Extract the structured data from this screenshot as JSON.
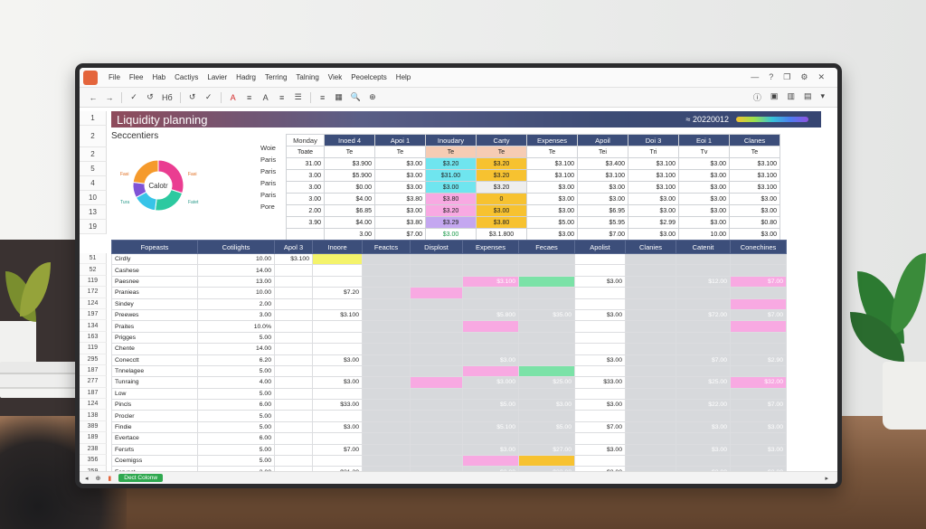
{
  "menu": [
    "File",
    "Flee",
    "Hab",
    "Cactiys",
    "Lavier",
    "Hadrg",
    "Terring",
    "Talning",
    "Viek",
    "Peoelcepts",
    "Help"
  ],
  "toolbar": [
    "←",
    "→",
    "✓",
    "↺",
    "Hб",
    "↺",
    "✓",
    "A",
    "≡",
    "A",
    "≡",
    "☰",
    "≡",
    "▦",
    "🔍",
    "⊕"
  ],
  "title": "Liquidity planning",
  "title_date": "20220012",
  "subhead": "Seccentiers",
  "donut": {
    "center_label": "Calotr",
    "segments": [
      {
        "label": "Fasi",
        "color": "#ea3d91",
        "value": 30
      },
      {
        "label": "Fatet",
        "color": "#2dc9a0",
        "value": 22
      },
      {
        "label": "Tura",
        "color": "#37c4e8",
        "value": 15
      },
      {
        "label": "Fasi",
        "color": "#7f53d6",
        "value": 10
      },
      {
        "label": "Fasi",
        "color": "#f59a2c",
        "value": 23
      }
    ]
  },
  "upper": {
    "side_labels": [
      "Woie",
      "Paris",
      "Paris",
      "Paris",
      "Paris",
      "Pore"
    ],
    "header": [
      "Monday",
      "Inoed 4",
      "Apoi 1",
      "Inoudary",
      "Carty",
      "Expenses",
      "Apoil",
      "Doi 3",
      "Eoi 1",
      "Clanes"
    ],
    "subheader": [
      "Toate",
      "Te",
      "Te",
      "Te",
      "Te",
      "Te",
      "Tei",
      "Tri",
      "Tv",
      "Te"
    ],
    "rows": [
      [
        "31.00",
        "$3.900",
        "$3.00",
        "$3.20",
        "$3.20",
        "$3.100",
        "$3.400",
        "$3.100",
        "$3.00",
        "$3.100"
      ],
      [
        "3.00",
        "$5.900",
        "$3.00",
        "$31.00",
        "$3.20",
        "$3.100",
        "$3.100",
        "$3.100",
        "$3.00",
        "$3.100"
      ],
      [
        "3.00",
        "$0.00",
        "$3.00",
        "$3.00",
        "$3.20",
        "$3.00",
        "$3.00",
        "$3.100",
        "$3.00",
        "$3.100"
      ],
      [
        "3.00",
        "$4.00",
        "$3.80",
        "$3.80",
        "0",
        "$3.00",
        "$3.00",
        "$3.00",
        "$3.00",
        "$3.00"
      ],
      [
        "2.00",
        "$6.85",
        "$3.00",
        "$3.20",
        "$3.00",
        "$3.00",
        "$6.95",
        "$3.00",
        "$3.00",
        "$3.00"
      ],
      [
        "3.90",
        "$4.00",
        "$3.80",
        "$3.29",
        "$3.80",
        "$5.00",
        "$5.95",
        "$2.99",
        "$3.00",
        "$0.80"
      ],
      [
        "",
        "3.00",
        "$7.00",
        "$3.00",
        "$3.1.800",
        "$3.00",
        "$7.00",
        "$3.00",
        "10.00",
        "$3.00"
      ]
    ]
  },
  "lower": {
    "header": [
      "Fopeasts",
      "Cotilights",
      "Apol 3",
      "Inoore",
      "Feactcs",
      "Displost",
      "Expenses",
      "Fecaes",
      "Apolist",
      "Clanies",
      "Catenit",
      "Conechines"
    ],
    "rows": [
      {
        "n": "51",
        "label": "Cirdly",
        "v": "10.00",
        "c": [
          "$3.100",
          "",
          "",
          "",
          "",
          "",
          "",
          "",
          "",
          ""
        ]
      },
      {
        "n": "52",
        "label": "Cashese",
        "v": "14.00",
        "c": [
          "",
          "",
          "",
          "",
          "",
          "",
          "",
          "",
          "",
          ""
        ]
      },
      {
        "n": "119",
        "label": "Paesnee",
        "v": "13.00",
        "c": [
          "",
          "",
          "",
          "",
          "$3.100",
          "",
          "$3.00",
          "",
          "$12.00",
          "$7.00"
        ]
      },
      {
        "n": "172",
        "label": "Pranieas",
        "v": "10.00",
        "c": [
          "",
          "$7.20",
          "",
          "",
          "",
          "",
          "",
          "",
          "",
          ""
        ]
      },
      {
        "n": "124",
        "label": "Sindey",
        "v": "2.00",
        "c": [
          "",
          "",
          "",
          "",
          "",
          "",
          "",
          "",
          "",
          ""
        ]
      },
      {
        "n": "197",
        "label": "Preewes",
        "v": "3.00",
        "c": [
          "",
          "$3.100",
          "",
          "",
          "$5.800",
          "$35.00",
          "$3.00",
          "",
          "$72.00",
          "$7.00"
        ]
      },
      {
        "n": "134",
        "label": "Praites",
        "v": "10.0%",
        "c": [
          "",
          "",
          "",
          "",
          "",
          "",
          "",
          "",
          "",
          ""
        ]
      },
      {
        "n": "163",
        "label": "Prigges",
        "v": "5.00",
        "c": [
          "",
          "",
          "",
          "",
          "",
          "",
          "",
          "",
          "",
          ""
        ]
      },
      {
        "n": "119",
        "label": "Chente",
        "v": "14.00",
        "c": [
          "",
          "",
          "",
          "",
          "",
          "",
          "",
          "",
          "",
          ""
        ]
      },
      {
        "n": "295",
        "label": "Conecctt",
        "v": "6.20",
        "c": [
          "",
          "$3.00",
          "",
          "",
          "$3.00",
          "",
          "$3.00",
          "",
          "$7.00",
          "$2.90"
        ]
      },
      {
        "n": "187",
        "label": "Tnnelagee",
        "v": "5.00",
        "c": [
          "",
          "",
          "",
          "",
          "",
          "",
          "",
          "",
          "",
          ""
        ]
      },
      {
        "n": "277",
        "label": "Tunraing",
        "v": "4.00",
        "c": [
          "",
          "$3.00",
          "",
          "",
          "$3.000",
          "$25.00",
          "$33.00",
          "",
          "$25.00",
          "$32.00"
        ]
      },
      {
        "n": "187",
        "label": "Low",
        "v": "5.00",
        "c": [
          "",
          "",
          "",
          "",
          "",
          "",
          "",
          "",
          "",
          ""
        ]
      },
      {
        "n": "124",
        "label": "Pincls",
        "v": "6.00",
        "c": [
          "",
          "$33.00",
          "",
          "",
          "$5.00",
          "$3.00",
          "$3.00",
          "",
          "$22.00",
          "$7.00"
        ]
      },
      {
        "n": "138",
        "label": "Procler",
        "v": "5.00",
        "c": [
          "",
          "",
          "",
          "",
          "",
          "",
          "",
          "",
          "",
          ""
        ]
      },
      {
        "n": "389",
        "label": "Findie",
        "v": "5.00",
        "c": [
          "",
          "$3.00",
          "",
          "",
          "$5.100",
          "$5.00",
          "$7.00",
          "",
          "$3.00",
          "$3.00"
        ]
      },
      {
        "n": "189",
        "label": "Evertace",
        "v": "6.00",
        "c": [
          "",
          "",
          "",
          "",
          "",
          "",
          "",
          "",
          "",
          ""
        ]
      },
      {
        "n": "238",
        "label": "Fersrts",
        "v": "5.00",
        "c": [
          "",
          "$7.00",
          "",
          "",
          "$3.00",
          "$27.00",
          "$3.00",
          "",
          "$3.00",
          "$3.00"
        ]
      },
      {
        "n": "356",
        "label": "Coemigss",
        "v": "5.00",
        "c": [
          "",
          "",
          "",
          "",
          "",
          "",
          "",
          "",
          "",
          ""
        ]
      },
      {
        "n": "259",
        "label": "Fervect",
        "v": "3.00",
        "c": [
          "",
          "$31.20",
          "",
          "",
          "$3.00",
          "$33.00",
          "$3.00",
          "",
          "$3.00",
          "$3.00"
        ]
      }
    ]
  },
  "status": {
    "sheet_tab": "Dect Colonw"
  },
  "colors": {
    "header": "#3c4e7a",
    "cyan": "#6fe5ef",
    "pink": "#f8a9e2",
    "yellow": "#f7c230",
    "green": "#7be2a7",
    "lime": "#f4f36b",
    "purple": "#c4a7f0"
  }
}
